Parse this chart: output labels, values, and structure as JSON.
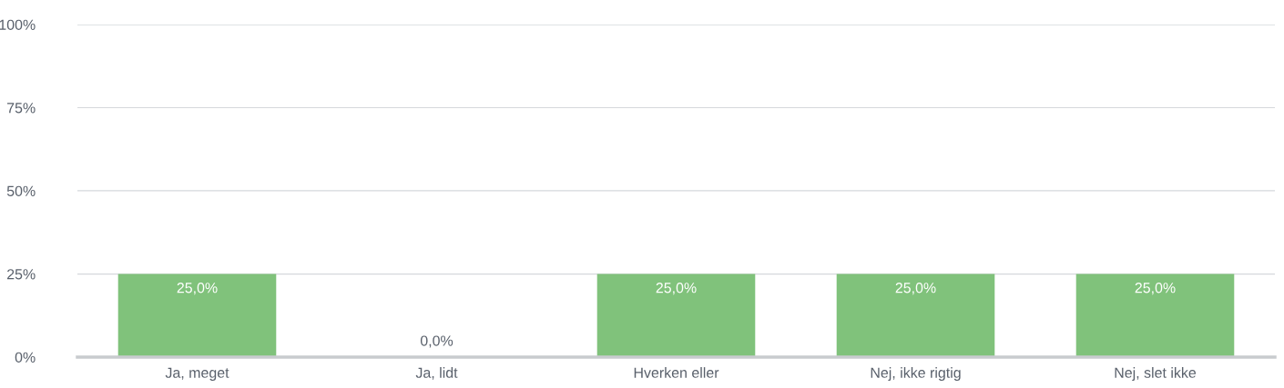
{
  "chart_data": {
    "type": "bar",
    "categories": [
      "Ja, meget",
      "Ja, lidt",
      "Hverken eller",
      "Nej, ikke rigtig",
      "Nej, slet ikke"
    ],
    "values": [
      25,
      0,
      25,
      25,
      25
    ],
    "value_labels": [
      "25,0%",
      "0,0%",
      "25,0%",
      "25,0%",
      "25,0%"
    ],
    "color": "#80c27b",
    "ylim": [
      0,
      100
    ],
    "yticks": [
      {
        "value": 0,
        "label": "0%"
      },
      {
        "value": 25,
        "label": "25%"
      },
      {
        "value": 50,
        "label": "50%"
      },
      {
        "value": 75,
        "label": "75%"
      },
      {
        "value": 100,
        "label": "100%"
      }
    ],
    "grid": "y"
  }
}
